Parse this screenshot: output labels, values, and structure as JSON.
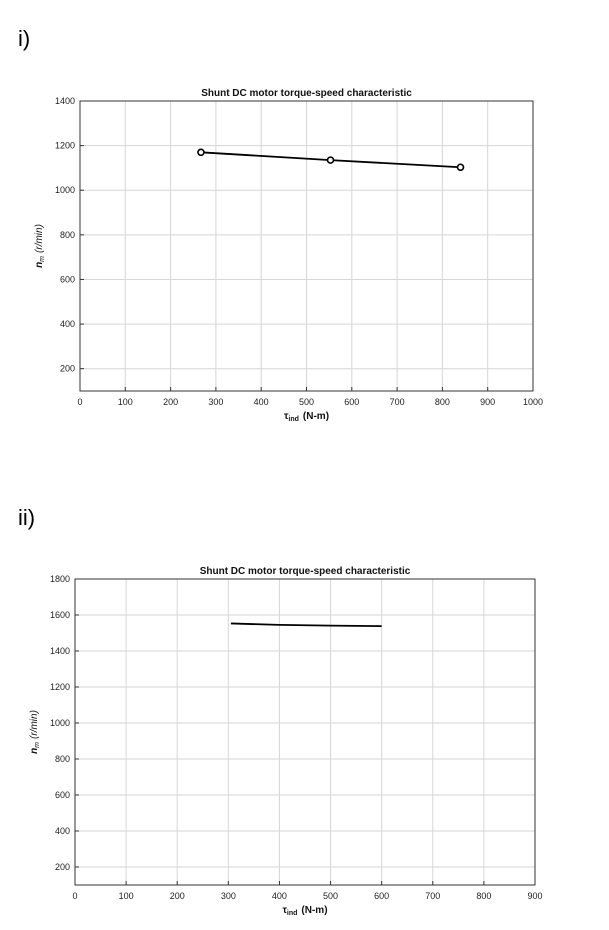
{
  "labels": {
    "part1": "i)",
    "part2": "ii)"
  },
  "chart_data": [
    {
      "type": "line",
      "title": "Shunt DC motor torque-speed characteristic",
      "xlabel_symbol": "τ",
      "xlabel_sub": "ind",
      "xlabel_unit": "(N-m)",
      "ylabel_symbol": "n",
      "ylabel_sub": "m",
      "ylabel_unit": "(r/min)",
      "xlim": [
        0,
        1000
      ],
      "ylim": [
        100,
        1400
      ],
      "xticks": [
        0,
        100,
        200,
        300,
        400,
        500,
        600,
        700,
        800,
        900,
        1000
      ],
      "yticks": [
        200,
        400,
        600,
        800,
        1000,
        1200,
        1400
      ],
      "grid": true,
      "markers": true,
      "x": [
        267,
        553,
        840
      ],
      "y": [
        1170,
        1135,
        1103
      ]
    },
    {
      "type": "line",
      "title": "Shunt DC motor torque-speed characteristic",
      "xlabel_symbol": "τ",
      "xlabel_sub": "ind",
      "xlabel_unit": "(N-m)",
      "ylabel_symbol": "n",
      "ylabel_sub": "m",
      "ylabel_unit": "(r/min)",
      "xlim": [
        0,
        900
      ],
      "ylim": [
        100,
        1800
      ],
      "xticks": [
        0,
        100,
        200,
        300,
        400,
        500,
        600,
        700,
        800,
        900
      ],
      "yticks": [
        200,
        400,
        600,
        800,
        1000,
        1200,
        1400,
        1600,
        1800
      ],
      "grid": true,
      "markers": false,
      "x": [
        305,
        400,
        500,
        600
      ],
      "y": [
        1553,
        1545,
        1541,
        1538
      ]
    }
  ]
}
